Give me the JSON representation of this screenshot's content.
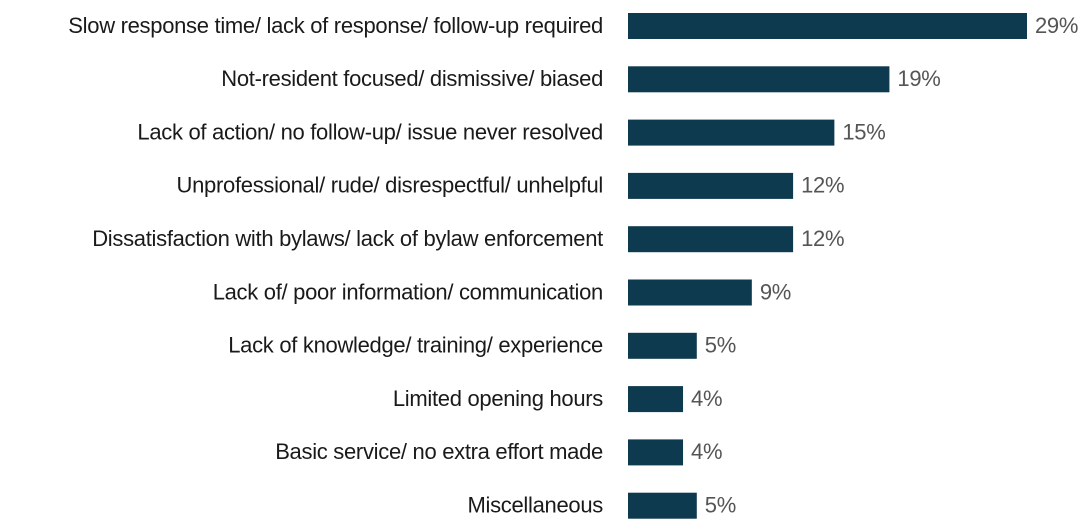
{
  "chart_data": {
    "type": "bar",
    "orientation": "horizontal",
    "categories": [
      "Slow response time/ lack of response/ follow-up required",
      "Not-resident focused/ dismissive/ biased",
      "Lack of action/ no follow-up/ issue never resolved",
      "Unprofessional/ rude/ disrespectful/ unhelpful",
      "Dissatisfaction with bylaws/ lack of bylaw enforcement",
      "Lack of/ poor information/ communication",
      "Lack of knowledge/ training/ experience",
      "Limited opening hours",
      "Basic service/ no extra effort made",
      "Miscellaneous"
    ],
    "values": [
      29,
      19,
      15,
      12,
      12,
      9,
      5,
      4,
      4,
      5
    ],
    "value_labels": [
      "29%",
      "19%",
      "15%",
      "12%",
      "12%",
      "9%",
      "5%",
      "4%",
      "4%",
      "5%"
    ],
    "color": "#0e3a4f"
  }
}
